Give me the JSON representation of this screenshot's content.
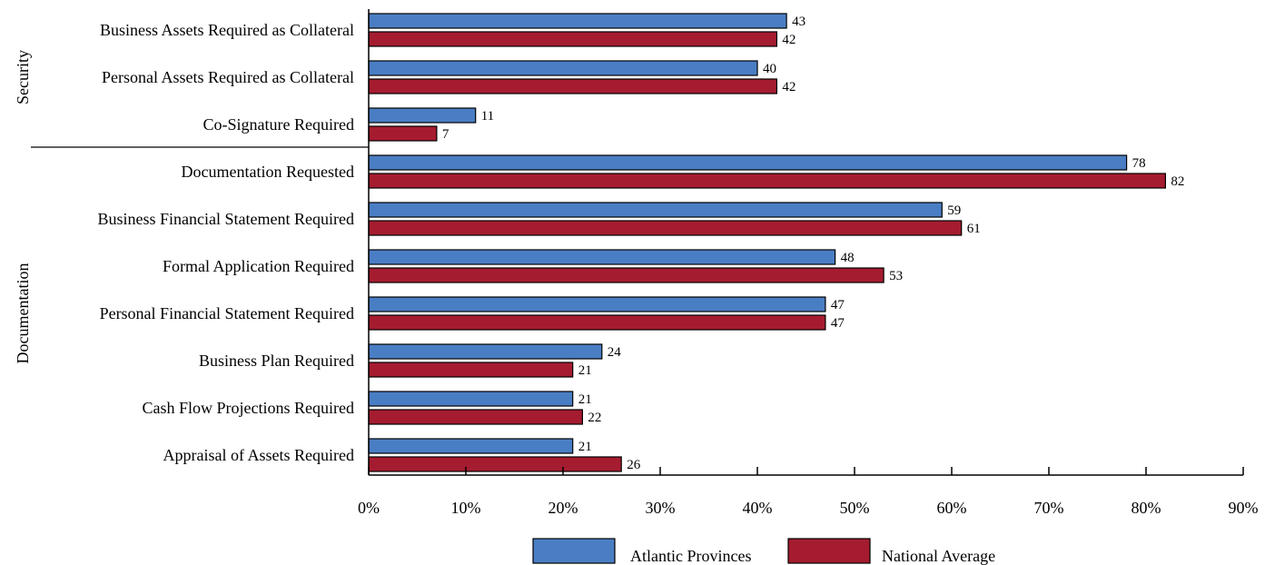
{
  "chart_data": {
    "type": "bar",
    "orientation": "horizontal",
    "groups": [
      {
        "label": "Security",
        "categories": [
          0,
          1,
          2
        ]
      },
      {
        "label": "Documentation",
        "categories": [
          3,
          4,
          5,
          6,
          7,
          8,
          9
        ]
      }
    ],
    "categories": [
      "Business Assets Required as Collateral",
      "Personal Assets Required as Collateral",
      "Co-Signature Required",
      "Documentation Requested",
      "Business Financial Statement Required",
      "Formal Application Required",
      "Personal Financial Statement Required",
      "Business Plan Required",
      "Cash Flow Projections Required",
      "Appraisal of Assets Required"
    ],
    "series": [
      {
        "name": "Atlantic Provinces",
        "color": "#4a7ec4",
        "values": [
          43,
          40,
          11,
          78,
          59,
          48,
          47,
          24,
          21,
          21
        ]
      },
      {
        "name": "National Average",
        "color": "#a51c30",
        "values": [
          42,
          42,
          7,
          82,
          61,
          53,
          47,
          21,
          22,
          26
        ]
      }
    ],
    "xlim": [
      0,
      90
    ],
    "xticks": [
      0,
      10,
      20,
      30,
      40,
      50,
      60,
      70,
      80,
      90
    ],
    "tick_labels": [
      "0%",
      "10%",
      "20%",
      "30%",
      "40%",
      "50%",
      "60%",
      "70%",
      "80%",
      "90%"
    ],
    "legend_position": "bottom",
    "grid": false
  }
}
